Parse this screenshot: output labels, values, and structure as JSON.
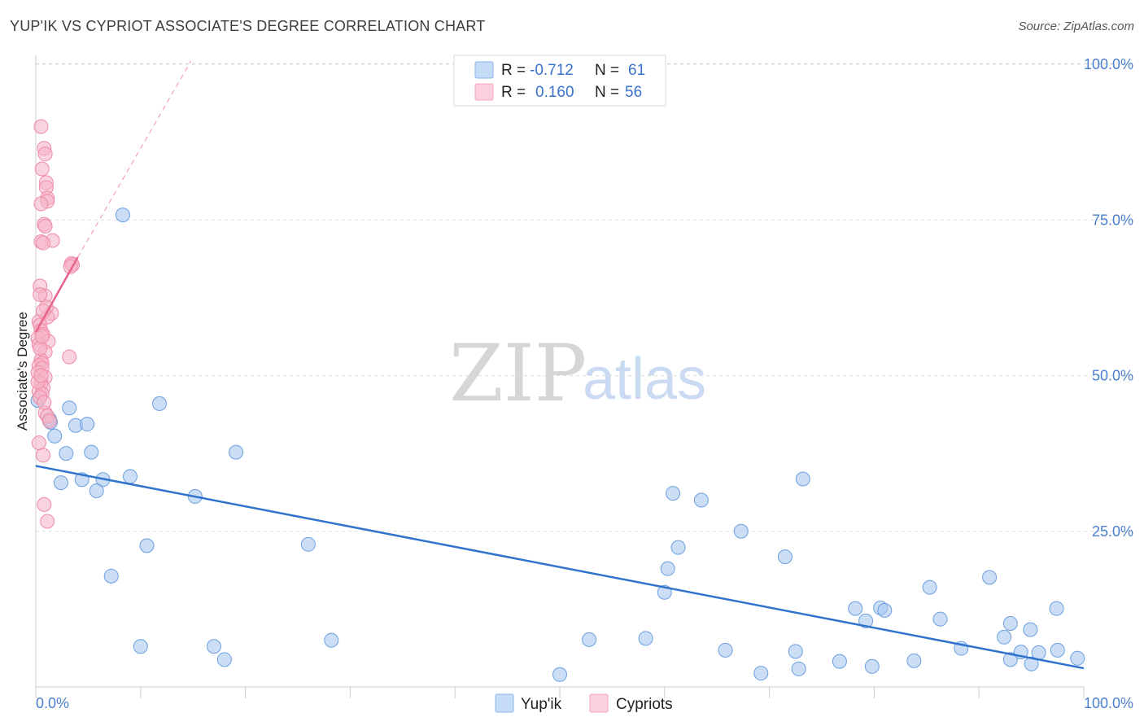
{
  "title": "YUP'IK VS CYPRIOT ASSOCIATE'S DEGREE CORRELATION CHART",
  "source": "Source: ZipAtlas.com",
  "legend": {
    "rows": [
      {
        "r_label": "R = ",
        "r_value": "-0.712",
        "n_label": "N = ",
        "n_value": "61",
        "color": "#a9c8f0"
      },
      {
        "r_label": "R = ",
        "r_value": "0.160",
        "n_label": "N = ",
        "n_value": "56",
        "color": "#f5b5c8"
      }
    ]
  },
  "bottom_legend": [
    "Yup'ik",
    "Cypriots"
  ],
  "watermark": {
    "zip": "ZIP",
    "atlas": "atlas"
  },
  "chart_data": {
    "type": "scatter",
    "ylabel": "Associate's Degree",
    "xlim": [
      0,
      100
    ],
    "ylim": [
      0,
      100
    ],
    "x_tick_labels": [
      "0.0%",
      "100.0%"
    ],
    "y_ticks": [
      25,
      50,
      75,
      100
    ],
    "y_tick_labels": [
      "25.0%",
      "50.0%",
      "75.0%",
      "100.0%"
    ],
    "grid": true,
    "series": [
      {
        "name": "Yup'ik",
        "color": "#a9c8f0",
        "stroke": "#6b9fe0",
        "trend_color": "#2f73cc",
        "trend": {
          "x0": 0,
          "y0": 35.5,
          "x1": 100,
          "y1": 3.0
        },
        "points": [
          [
            8.3,
            75.8
          ],
          [
            11.8,
            45.5
          ],
          [
            3.2,
            44.8
          ],
          [
            1.3,
            43.0
          ],
          [
            1.4,
            42.5
          ],
          [
            3.8,
            42.0
          ],
          [
            4.9,
            42.2
          ],
          [
            1.8,
            40.3
          ],
          [
            2.9,
            37.5
          ],
          [
            5.3,
            37.7
          ],
          [
            19.1,
            37.7
          ],
          [
            0.2,
            46.0
          ],
          [
            2.4,
            32.8
          ],
          [
            4.4,
            33.3
          ],
          [
            6.4,
            33.3
          ],
          [
            9.0,
            33.8
          ],
          [
            5.8,
            31.5
          ],
          [
            15.2,
            30.6
          ],
          [
            10.6,
            22.7
          ],
          [
            26.0,
            22.9
          ],
          [
            7.2,
            17.8
          ],
          [
            10.0,
            6.5
          ],
          [
            17.0,
            6.5
          ],
          [
            18.0,
            4.4
          ],
          [
            28.2,
            7.5
          ],
          [
            60.8,
            31.1
          ],
          [
            63.5,
            30.0
          ],
          [
            73.2,
            33.4
          ],
          [
            67.3,
            25.0
          ],
          [
            61.3,
            22.4
          ],
          [
            60.3,
            19.0
          ],
          [
            71.5,
            20.9
          ],
          [
            60.0,
            15.2
          ],
          [
            52.8,
            7.6
          ],
          [
            58.2,
            7.8
          ],
          [
            65.8,
            5.9
          ],
          [
            69.2,
            2.2
          ],
          [
            72.5,
            5.7
          ],
          [
            72.8,
            2.9
          ],
          [
            50.0,
            2.0
          ],
          [
            76.7,
            4.1
          ],
          [
            78.2,
            12.6
          ],
          [
            80.6,
            12.7
          ],
          [
            81.0,
            12.3
          ],
          [
            79.2,
            10.6
          ],
          [
            79.8,
            3.3
          ],
          [
            83.8,
            4.2
          ],
          [
            85.3,
            16.0
          ],
          [
            86.3,
            10.9
          ],
          [
            88.3,
            6.2
          ],
          [
            91.0,
            17.6
          ],
          [
            92.4,
            8.0
          ],
          [
            93.0,
            10.2
          ],
          [
            93.0,
            4.4
          ],
          [
            94.0,
            5.6
          ],
          [
            94.9,
            9.2
          ],
          [
            95.0,
            3.7
          ],
          [
            95.7,
            5.5
          ],
          [
            97.4,
            12.6
          ],
          [
            97.5,
            5.9
          ],
          [
            99.4,
            4.6
          ]
        ]
      },
      {
        "name": "Cypriots",
        "color": "#f5b5c8",
        "stroke": "#ef8aa8",
        "trend_color": "#e8638b",
        "trend": {
          "x0": 0,
          "y0": 57.0,
          "x1": 4.0,
          "y1": 69.0
        },
        "trend_dashed": {
          "x0": 4.0,
          "y0": 69.0,
          "x1": 14.8,
          "y1": 100.5
        },
        "points": [
          [
            0.5,
            90.0
          ],
          [
            0.8,
            86.5
          ],
          [
            0.9,
            85.6
          ],
          [
            0.6,
            83.2
          ],
          [
            1.0,
            81.0
          ],
          [
            1.0,
            80.2
          ],
          [
            1.1,
            78.5
          ],
          [
            1.1,
            78.0
          ],
          [
            0.5,
            77.6
          ],
          [
            0.8,
            74.3
          ],
          [
            0.9,
            74.0
          ],
          [
            1.6,
            71.7
          ],
          [
            0.5,
            71.5
          ],
          [
            0.7,
            71.3
          ],
          [
            3.4,
            68.0
          ],
          [
            3.5,
            67.8
          ],
          [
            3.3,
            67.5
          ],
          [
            0.4,
            64.4
          ],
          [
            0.9,
            62.8
          ],
          [
            1.5,
            60.0
          ],
          [
            1.1,
            59.4
          ],
          [
            0.3,
            58.7
          ],
          [
            0.4,
            58.1
          ],
          [
            0.5,
            57.2
          ],
          [
            0.7,
            56.6
          ],
          [
            0.2,
            56.0
          ],
          [
            1.2,
            55.5
          ],
          [
            0.3,
            55.0
          ],
          [
            0.9,
            53.8
          ],
          [
            3.2,
            53.0
          ],
          [
            0.5,
            52.5
          ],
          [
            0.6,
            52.0
          ],
          [
            0.3,
            51.6
          ],
          [
            0.6,
            51.2
          ],
          [
            0.2,
            50.5
          ],
          [
            0.9,
            49.7
          ],
          [
            0.5,
            48.8
          ],
          [
            0.7,
            48.0
          ],
          [
            0.3,
            47.5
          ],
          [
            0.6,
            47.1
          ],
          [
            0.9,
            44.0
          ],
          [
            1.1,
            43.5
          ],
          [
            1.3,
            42.7
          ],
          [
            0.3,
            39.2
          ],
          [
            0.7,
            37.2
          ],
          [
            0.8,
            29.3
          ],
          [
            1.1,
            26.6
          ],
          [
            0.4,
            46.5
          ],
          [
            0.8,
            45.7
          ],
          [
            0.4,
            54.4
          ],
          [
            0.6,
            56.3
          ],
          [
            0.2,
            49.0
          ],
          [
            1.0,
            61.0
          ],
          [
            0.4,
            63.0
          ],
          [
            0.7,
            60.4
          ],
          [
            0.5,
            50.0
          ]
        ]
      }
    ]
  }
}
